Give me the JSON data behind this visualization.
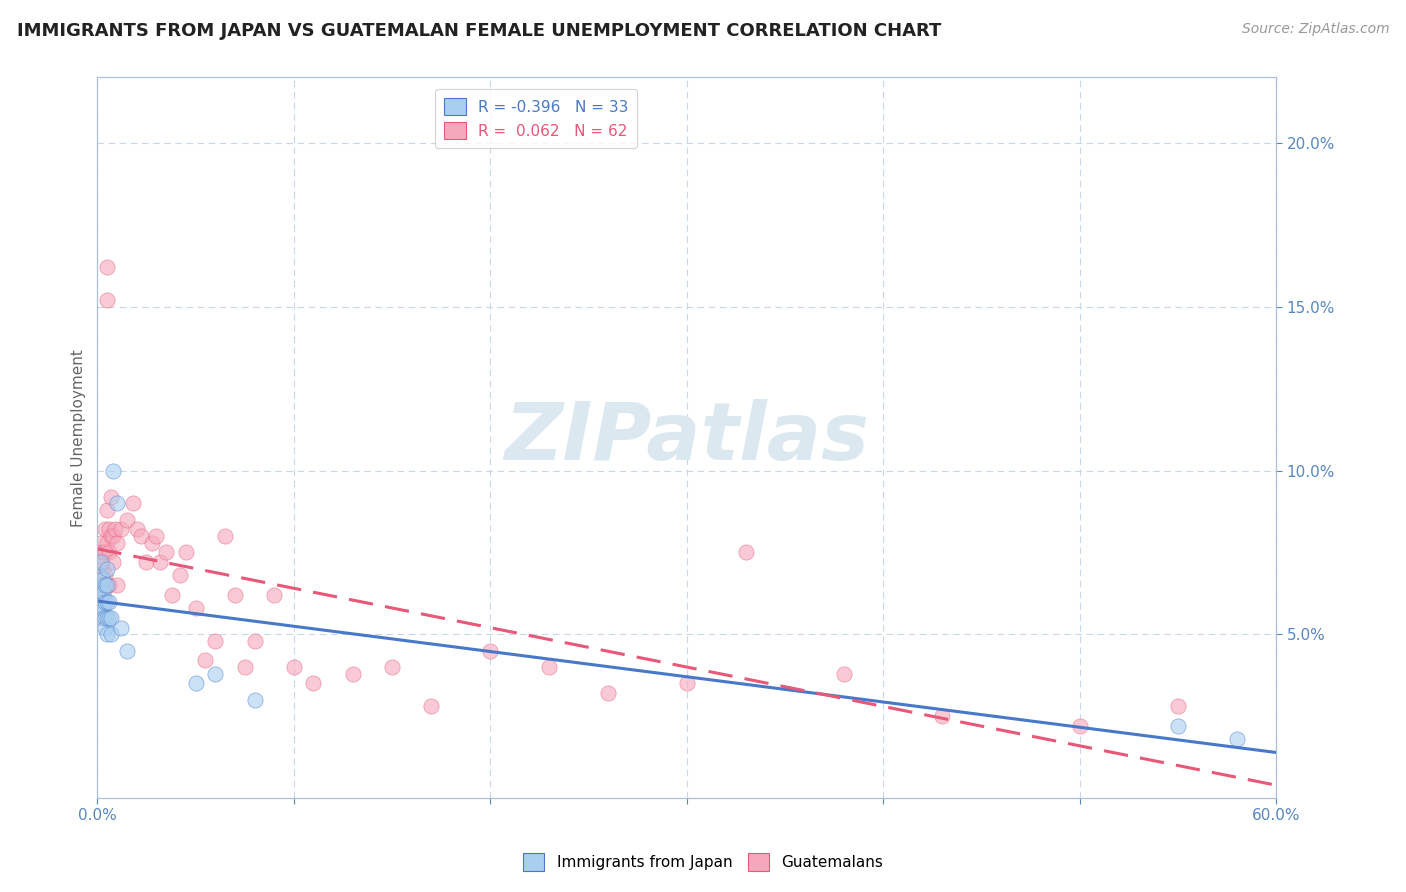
{
  "title": "IMMIGRANTS FROM JAPAN VS GUATEMALAN FEMALE UNEMPLOYMENT CORRELATION CHART",
  "source": "Source: ZipAtlas.com",
  "ylabel": "Female Unemployment",
  "xlim": [
    0.0,
    0.6
  ],
  "ylim": [
    0.0,
    0.22
  ],
  "yticks": [
    0.05,
    0.1,
    0.15,
    0.2
  ],
  "xticks": [
    0.0,
    0.1,
    0.2,
    0.3,
    0.4,
    0.5,
    0.6
  ],
  "legend_r1": "R = -0.396",
  "legend_n1": "N = 33",
  "legend_r2": "R =  0.062",
  "legend_n2": "N = 62",
  "color_japan": "#a8cef0",
  "color_guatemalan": "#f5a8bc",
  "color_japan_line": "#4878c8",
  "color_guatemalan_line": "#e85878",
  "background_color": "#ffffff",
  "grid_color": "#c8d8ea",
  "axis_color": "#a8c0d8",
  "title_color": "#222222",
  "tick_color": "#5888c0",
  "japan_scatter_x": [
    0.001,
    0.001,
    0.001,
    0.002,
    0.002,
    0.002,
    0.002,
    0.003,
    0.003,
    0.003,
    0.003,
    0.004,
    0.004,
    0.004,
    0.004,
    0.005,
    0.005,
    0.005,
    0.005,
    0.005,
    0.006,
    0.006,
    0.007,
    0.007,
    0.008,
    0.01,
    0.012,
    0.015,
    0.05,
    0.06,
    0.08,
    0.55,
    0.58
  ],
  "japan_scatter_y": [
    0.068,
    0.063,
    0.06,
    0.065,
    0.062,
    0.058,
    0.072,
    0.067,
    0.063,
    0.058,
    0.055,
    0.065,
    0.06,
    0.055,
    0.052,
    0.07,
    0.065,
    0.06,
    0.055,
    0.05,
    0.06,
    0.055,
    0.055,
    0.05,
    0.1,
    0.09,
    0.052,
    0.045,
    0.035,
    0.038,
    0.03,
    0.022,
    0.018
  ],
  "guatemalan_scatter_x": [
    0.001,
    0.001,
    0.001,
    0.002,
    0.002,
    0.002,
    0.002,
    0.003,
    0.003,
    0.003,
    0.004,
    0.004,
    0.004,
    0.005,
    0.005,
    0.005,
    0.005,
    0.006,
    0.006,
    0.006,
    0.007,
    0.007,
    0.008,
    0.008,
    0.009,
    0.01,
    0.01,
    0.012,
    0.015,
    0.018,
    0.02,
    0.022,
    0.025,
    0.028,
    0.03,
    0.032,
    0.035,
    0.038,
    0.042,
    0.045,
    0.05,
    0.055,
    0.06,
    0.065,
    0.07,
    0.075,
    0.08,
    0.09,
    0.1,
    0.11,
    0.13,
    0.15,
    0.17,
    0.2,
    0.23,
    0.26,
    0.3,
    0.33,
    0.38,
    0.43,
    0.5,
    0.55
  ],
  "guatemalan_scatter_y": [
    0.075,
    0.068,
    0.062,
    0.078,
    0.072,
    0.068,
    0.062,
    0.075,
    0.07,
    0.062,
    0.082,
    0.075,
    0.068,
    0.162,
    0.152,
    0.088,
    0.078,
    0.082,
    0.075,
    0.065,
    0.092,
    0.08,
    0.08,
    0.072,
    0.082,
    0.078,
    0.065,
    0.082,
    0.085,
    0.09,
    0.082,
    0.08,
    0.072,
    0.078,
    0.08,
    0.072,
    0.075,
    0.062,
    0.068,
    0.075,
    0.058,
    0.042,
    0.048,
    0.08,
    0.062,
    0.04,
    0.048,
    0.062,
    0.04,
    0.035,
    0.038,
    0.04,
    0.028,
    0.045,
    0.04,
    0.032,
    0.035,
    0.075,
    0.038,
    0.025,
    0.022,
    0.028
  ],
  "watermark": "ZIPatlas",
  "watermark_color": "#dce8f0"
}
